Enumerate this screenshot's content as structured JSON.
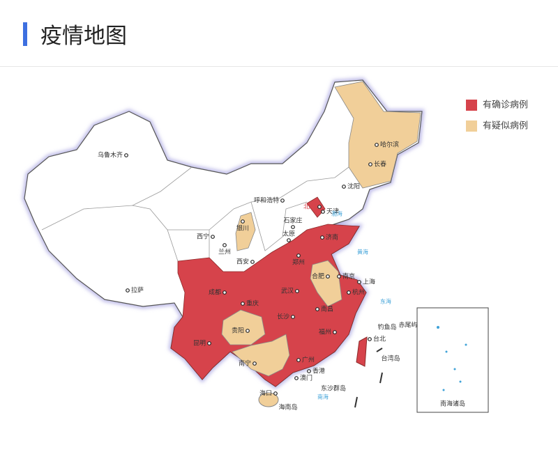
{
  "header": {
    "title": "疫情地图"
  },
  "legend": [
    {
      "label": "有确诊病例",
      "color": "#d6434b"
    },
    {
      "label": "有疑似病例",
      "color": "#f1cf99"
    }
  ],
  "cities": [
    "乌鲁木齐",
    "哈尔滨",
    "长春",
    "沈阳",
    "呼和浩特",
    "北京",
    "天津",
    "银川",
    "石家庄",
    "济南",
    "太原",
    "西宁",
    "兰州",
    "西安",
    "郑州",
    "合肥",
    "南京",
    "上海",
    "拉萨",
    "成都",
    "重庆",
    "武汉",
    "杭州",
    "南昌",
    "长沙",
    "贵阳",
    "昆明",
    "福州",
    "台北",
    "钓鱼岛",
    "赤尾屿",
    "台湾岛",
    "南宁",
    "广州",
    "香港",
    "澳门",
    "海口",
    "海南岛",
    "东沙群岛"
  ],
  "seas": [
    "渤海",
    "黄海",
    "东海",
    "南海"
  ],
  "inset": {
    "label": "南海诸岛"
  }
}
